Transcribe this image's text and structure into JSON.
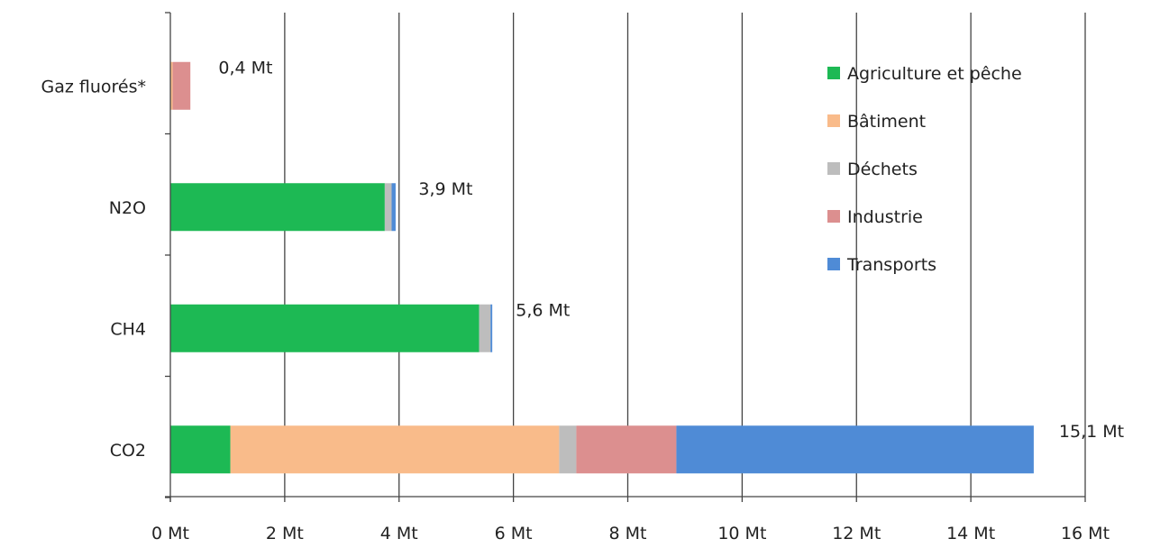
{
  "chart_data": {
    "type": "bar",
    "orientation": "horizontal",
    "stacked": true,
    "categories": [
      "Gaz fluorés*",
      "N2O",
      "CH4",
      "CO2"
    ],
    "series": [
      {
        "name": "Agriculture et pêche",
        "color": "#1db954",
        "values": [
          0,
          3.75,
          5.4,
          1.05
        ]
      },
      {
        "name": "Bâtiment",
        "color": "#f9bb8a",
        "values": [
          0.04,
          0,
          0,
          5.75
        ]
      },
      {
        "name": "Déchets",
        "color": "#bdbdbd",
        "values": [
          0,
          0.12,
          0.2,
          0.3
        ]
      },
      {
        "name": "Industrie",
        "color": "#dc8f8f",
        "values": [
          0.31,
          0,
          0,
          1.75
        ]
      },
      {
        "name": "Transports",
        "color": "#4f8bd6",
        "values": [
          0,
          0.07,
          0.03,
          6.25
        ]
      }
    ],
    "totals": [
      "0,4 Mt",
      "3,9 Mt",
      "5,6 Mt",
      "15,1 Mt"
    ],
    "total_values": [
      0.4,
      3.9,
      5.6,
      15.1
    ],
    "xticks": [
      "0 Mt",
      "2 Mt",
      "4 Mt",
      "6 Mt",
      "8 Mt",
      "10 Mt",
      "12 Mt",
      "14 Mt",
      "16 Mt"
    ],
    "xtick_values": [
      0,
      2,
      4,
      6,
      8,
      10,
      12,
      14,
      16
    ],
    "xlim": [
      0,
      16
    ],
    "grid": true,
    "legend": "right"
  }
}
